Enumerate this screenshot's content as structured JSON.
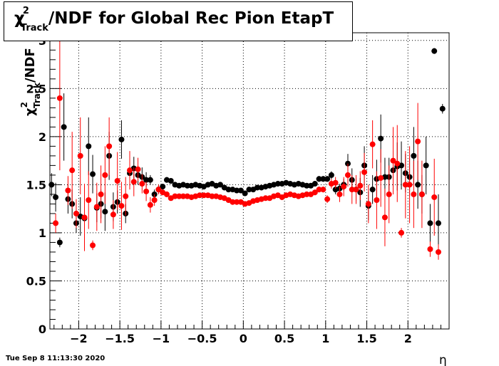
{
  "title": {
    "chi": "χ",
    "sup": "2",
    "sub": "Track",
    "rest": "/NDF for Global Rec Pion EtapT"
  },
  "timestamp": "Tue Sep  8 11:13:30 2020",
  "chart_data": {
    "type": "scatter",
    "xlabel": "η",
    "ylabel": "χ²Track/NDF",
    "xlim": [
      -2.35,
      2.5
    ],
    "ylim": [
      0,
      3.08
    ],
    "x_ticks": [
      "−2",
      "−1.5",
      "−1",
      "−0.5",
      "0",
      "0.5",
      "1",
      "1.5",
      "2"
    ],
    "y_ticks": [
      "0",
      "0.5",
      "1",
      "1.5",
      "2",
      "2.5",
      "3"
    ],
    "grid": true,
    "series": [
      {
        "color": "#000000",
        "points": [
          [
            -2.33,
            1.5,
            0.12
          ],
          [
            -2.28,
            1.37,
            0.15
          ],
          [
            -2.23,
            0.9,
            0.05
          ],
          [
            -2.18,
            2.1,
            0.35
          ],
          [
            -2.13,
            1.35,
            0.15
          ],
          [
            -2.08,
            1.3,
            0.15
          ],
          [
            -2.03,
            1.1,
            0.1
          ],
          [
            -1.98,
            1.17,
            0.2
          ],
          [
            -1.93,
            1.15,
            0.15
          ],
          [
            -1.88,
            1.9,
            0.3
          ],
          [
            -1.83,
            1.61,
            0.2
          ],
          [
            -1.78,
            1.26,
            0.15
          ],
          [
            -1.73,
            1.3,
            0.15
          ],
          [
            -1.68,
            1.22,
            0.2
          ],
          [
            -1.63,
            1.8,
            0.25
          ],
          [
            -1.58,
            1.27,
            0.15
          ],
          [
            -1.53,
            1.32,
            0.12
          ],
          [
            -1.48,
            1.97,
            0.2
          ],
          [
            -1.43,
            1.2,
            0.1
          ],
          [
            -1.38,
            1.62,
            0.12
          ],
          [
            -1.33,
            1.67,
            0.12
          ],
          [
            -1.28,
            1.6,
            0.1
          ],
          [
            -1.23,
            1.58,
            0.1
          ],
          [
            -1.18,
            1.55,
            0.08
          ],
          [
            -1.13,
            1.55,
            0.05
          ],
          [
            -1.08,
            1.4,
            0.05
          ],
          [
            -1.03,
            1.45,
            0.04
          ],
          [
            -0.98,
            1.48,
            0.03
          ],
          [
            -0.93,
            1.55,
            0.03
          ],
          [
            -0.88,
            1.54,
            0.03
          ],
          [
            -0.83,
            1.5,
            0.02
          ],
          [
            -0.78,
            1.49,
            0.02
          ],
          [
            -0.73,
            1.5,
            0.02
          ],
          [
            -0.68,
            1.49,
            0.02
          ],
          [
            -0.63,
            1.49,
            0.02
          ],
          [
            -0.58,
            1.5,
            0.02
          ],
          [
            -0.53,
            1.49,
            0.02
          ],
          [
            -0.48,
            1.48,
            0.02
          ],
          [
            -0.43,
            1.5,
            0.02
          ],
          [
            -0.38,
            1.51,
            0.02
          ],
          [
            -0.33,
            1.49,
            0.02
          ],
          [
            -0.28,
            1.5,
            0.02
          ],
          [
            -0.23,
            1.47,
            0.02
          ],
          [
            -0.18,
            1.45,
            0.02
          ],
          [
            -0.13,
            1.45,
            0.02
          ],
          [
            -0.08,
            1.44,
            0.02
          ],
          [
            -0.03,
            1.44,
            0.02
          ],
          [
            0.02,
            1.41,
            0.02
          ],
          [
            0.07,
            1.45,
            0.02
          ],
          [
            0.12,
            1.45,
            0.02
          ],
          [
            0.17,
            1.47,
            0.02
          ],
          [
            0.22,
            1.47,
            0.02
          ],
          [
            0.27,
            1.48,
            0.02
          ],
          [
            0.32,
            1.49,
            0.02
          ],
          [
            0.37,
            1.5,
            0.02
          ],
          [
            0.42,
            1.51,
            0.02
          ],
          [
            0.47,
            1.51,
            0.02
          ],
          [
            0.52,
            1.52,
            0.02
          ],
          [
            0.57,
            1.51,
            0.02
          ],
          [
            0.62,
            1.5,
            0.02
          ],
          [
            0.67,
            1.51,
            0.02
          ],
          [
            0.72,
            1.5,
            0.02
          ],
          [
            0.77,
            1.49,
            0.02
          ],
          [
            0.82,
            1.49,
            0.02
          ],
          [
            0.87,
            1.51,
            0.02
          ],
          [
            0.92,
            1.56,
            0.03
          ],
          [
            0.97,
            1.56,
            0.03
          ],
          [
            1.02,
            1.56,
            0.03
          ],
          [
            1.07,
            1.6,
            0.04
          ],
          [
            1.12,
            1.45,
            0.05
          ],
          [
            1.17,
            1.46,
            0.05
          ],
          [
            1.22,
            1.5,
            0.06
          ],
          [
            1.27,
            1.72,
            0.1
          ],
          [
            1.32,
            1.55,
            0.12
          ],
          [
            1.37,
            1.45,
            0.12
          ],
          [
            1.42,
            1.42,
            0.15
          ],
          [
            1.47,
            1.7,
            0.2
          ],
          [
            1.52,
            1.28,
            0.15
          ],
          [
            1.57,
            1.45,
            0.15
          ],
          [
            1.62,
            1.56,
            0.2
          ],
          [
            1.67,
            1.98,
            0.25
          ],
          [
            1.72,
            1.58,
            0.2
          ],
          [
            1.77,
            1.58,
            0.2
          ],
          [
            1.82,
            1.65,
            0.2
          ],
          [
            1.87,
            1.69,
            0.25
          ],
          [
            1.92,
            1.7,
            0.25
          ],
          [
            1.97,
            1.62,
            0.2
          ],
          [
            2.02,
            1.58,
            0.2
          ],
          [
            2.07,
            1.8,
            0.3
          ],
          [
            2.12,
            1.5,
            0.25
          ],
          [
            2.17,
            1.4,
            0.2
          ],
          [
            2.22,
            1.7,
            0.3
          ],
          [
            2.27,
            1.1,
            0.2
          ],
          [
            2.32,
            2.89,
            0.03
          ],
          [
            2.37,
            1.1,
            0.3
          ],
          [
            2.42,
            2.29,
            0.05
          ]
        ]
      },
      {
        "color": "#ff0000",
        "points": [
          [
            -2.28,
            1.1,
            0.1
          ],
          [
            -2.23,
            2.4,
            0.75
          ],
          [
            -2.13,
            1.44,
            0.15
          ],
          [
            -2.08,
            1.65,
            0.4
          ],
          [
            -2.03,
            1.2,
            0.15
          ],
          [
            -1.98,
            1.8,
            0.4
          ],
          [
            -1.93,
            1.16,
            0.35
          ],
          [
            -1.88,
            1.34,
            0.3
          ],
          [
            -1.83,
            0.87,
            0.05
          ],
          [
            -1.78,
            1.27,
            0.25
          ],
          [
            -1.73,
            1.4,
            0.3
          ],
          [
            -1.68,
            1.6,
            0.3
          ],
          [
            -1.63,
            1.9,
            0.3
          ],
          [
            -1.58,
            1.19,
            0.15
          ],
          [
            -1.53,
            1.54,
            0.3
          ],
          [
            -1.48,
            1.28,
            0.25
          ],
          [
            -1.43,
            1.38,
            0.2
          ],
          [
            -1.38,
            1.65,
            0.2
          ],
          [
            -1.33,
            1.53,
            0.15
          ],
          [
            -1.28,
            1.66,
            0.12
          ],
          [
            -1.23,
            1.51,
            0.1
          ],
          [
            -1.18,
            1.43,
            0.1
          ],
          [
            -1.13,
            1.29,
            0.08
          ],
          [
            -1.08,
            1.34,
            0.06
          ],
          [
            -1.03,
            1.45,
            0.05
          ],
          [
            -0.98,
            1.42,
            0.03
          ],
          [
            -0.93,
            1.4,
            0.03
          ],
          [
            -0.88,
            1.36,
            0.02
          ],
          [
            -0.83,
            1.38,
            0.02
          ],
          [
            -0.78,
            1.38,
            0.02
          ],
          [
            -0.73,
            1.38,
            0.02
          ],
          [
            -0.68,
            1.38,
            0.02
          ],
          [
            -0.63,
            1.37,
            0.02
          ],
          [
            -0.58,
            1.38,
            0.02
          ],
          [
            -0.53,
            1.39,
            0.02
          ],
          [
            -0.48,
            1.39,
            0.02
          ],
          [
            -0.43,
            1.39,
            0.02
          ],
          [
            -0.38,
            1.38,
            0.02
          ],
          [
            -0.33,
            1.38,
            0.02
          ],
          [
            -0.28,
            1.37,
            0.02
          ],
          [
            -0.23,
            1.36,
            0.02
          ],
          [
            -0.18,
            1.34,
            0.02
          ],
          [
            -0.13,
            1.32,
            0.02
          ],
          [
            -0.08,
            1.32,
            0.02
          ],
          [
            -0.03,
            1.32,
            0.02
          ],
          [
            0.02,
            1.3,
            0.02
          ],
          [
            0.07,
            1.31,
            0.02
          ],
          [
            0.12,
            1.33,
            0.02
          ],
          [
            0.17,
            1.34,
            0.02
          ],
          [
            0.22,
            1.35,
            0.02
          ],
          [
            0.27,
            1.36,
            0.02
          ],
          [
            0.32,
            1.36,
            0.02
          ],
          [
            0.37,
            1.38,
            0.02
          ],
          [
            0.42,
            1.39,
            0.02
          ],
          [
            0.47,
            1.37,
            0.02
          ],
          [
            0.52,
            1.39,
            0.02
          ],
          [
            0.57,
            1.4,
            0.02
          ],
          [
            0.62,
            1.39,
            0.02
          ],
          [
            0.67,
            1.38,
            0.02
          ],
          [
            0.72,
            1.39,
            0.02
          ],
          [
            0.77,
            1.4,
            0.02
          ],
          [
            0.82,
            1.4,
            0.02
          ],
          [
            0.87,
            1.42,
            0.03
          ],
          [
            0.92,
            1.45,
            0.03
          ],
          [
            0.97,
            1.45,
            0.03
          ],
          [
            1.02,
            1.35,
            0.04
          ],
          [
            1.07,
            1.51,
            0.05
          ],
          [
            1.12,
            1.52,
            0.06
          ],
          [
            1.17,
            1.4,
            0.08
          ],
          [
            1.22,
            1.48,
            0.1
          ],
          [
            1.27,
            1.6,
            0.12
          ],
          [
            1.32,
            1.45,
            0.15
          ],
          [
            1.37,
            1.45,
            0.15
          ],
          [
            1.42,
            1.49,
            0.15
          ],
          [
            1.47,
            1.63,
            0.2
          ],
          [
            1.52,
            1.3,
            0.2
          ],
          [
            1.57,
            1.92,
            0.25
          ],
          [
            1.62,
            1.34,
            0.3
          ],
          [
            1.67,
            1.57,
            0.3
          ],
          [
            1.72,
            1.16,
            0.3
          ],
          [
            1.77,
            1.4,
            0.3
          ],
          [
            1.82,
            1.75,
            0.35
          ],
          [
            1.87,
            1.72,
            0.4
          ],
          [
            1.92,
            1.0,
            0.05
          ],
          [
            1.97,
            1.5,
            0.35
          ],
          [
            2.02,
            1.5,
            0.4
          ],
          [
            2.07,
            1.4,
            0.35
          ],
          [
            2.12,
            1.95,
            0.4
          ],
          [
            2.17,
            1.4,
            0.35
          ],
          [
            2.27,
            0.83,
            0.08
          ],
          [
            2.32,
            1.37,
            0.4
          ],
          [
            2.37,
            0.8,
            0.08
          ]
        ]
      }
    ]
  }
}
